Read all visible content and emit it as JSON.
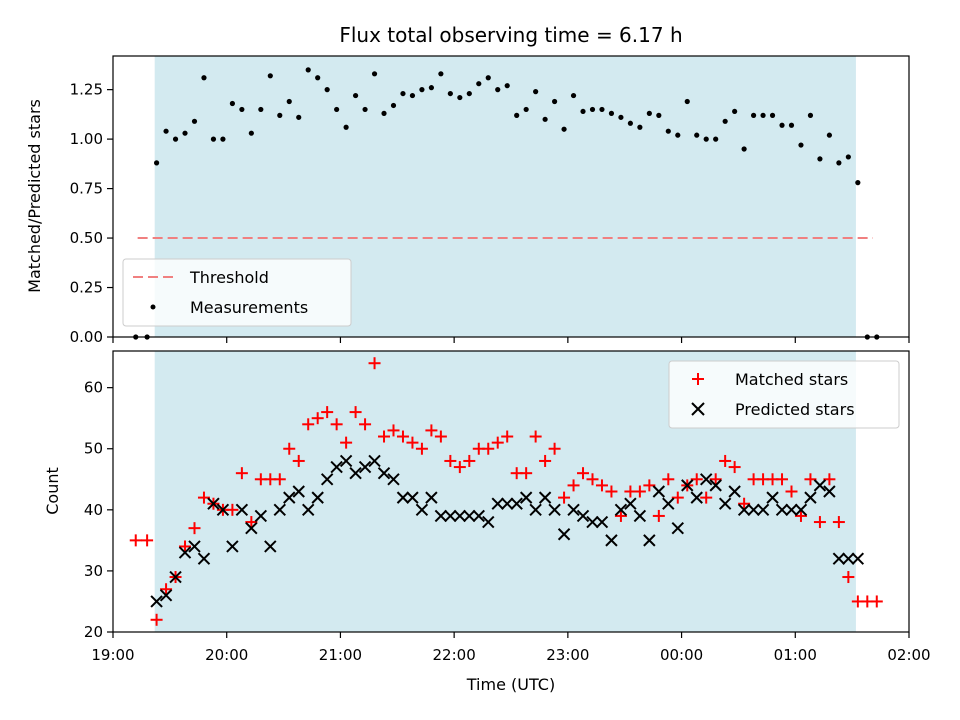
{
  "chart_data": [
    {
      "type": "scatter",
      "title": "Flux total observing time = 6.17 h",
      "xlabel": "",
      "ylabel": "Matched/Predicted stars",
      "ylim": [
        0,
        1.42
      ],
      "xlim": [
        "19:00",
        "02:00"
      ],
      "yticks": [
        "0.00",
        "0.25",
        "0.50",
        "0.75",
        "1.00",
        "1.25"
      ],
      "observing_window": [
        "19:22",
        "01:32"
      ],
      "window_color": "#d3eaf0",
      "legend": [
        "Threshold",
        "Measurements"
      ],
      "legend_placement": "lower-left",
      "threshold": {
        "name": "Threshold",
        "value": 0.5,
        "x_range": [
          "19:13",
          "01:41"
        ],
        "color": "#f08080",
        "style": "dashed"
      },
      "series": [
        {
          "name": "Measurements",
          "marker": "dot",
          "color": "#000000",
          "x": [
            "19:12",
            "19:18",
            "19:23",
            "19:28",
            "19:33",
            "19:38",
            "19:43",
            "19:48",
            "19:53",
            "19:58",
            "20:03",
            "20:08",
            "20:13",
            "20:18",
            "20:23",
            "20:28",
            "20:33",
            "20:38",
            "20:43",
            "20:48",
            "20:53",
            "20:58",
            "21:03",
            "21:08",
            "21:13",
            "21:18",
            "21:23",
            "21:28",
            "21:33",
            "21:38",
            "21:43",
            "21:48",
            "21:53",
            "21:58",
            "22:03",
            "22:08",
            "22:13",
            "22:18",
            "22:23",
            "22:28",
            "22:33",
            "22:38",
            "22:43",
            "22:48",
            "22:53",
            "22:58",
            "23:03",
            "23:08",
            "23:13",
            "23:18",
            "23:23",
            "23:28",
            "23:33",
            "23:38",
            "23:43",
            "23:48",
            "23:53",
            "23:58",
            "00:03",
            "00:08",
            "00:13",
            "00:18",
            "00:23",
            "00:28",
            "00:33",
            "00:38",
            "00:43",
            "00:48",
            "00:53",
            "00:58",
            "01:03",
            "01:08",
            "01:13",
            "01:18",
            "01:23",
            "01:28",
            "01:33",
            "01:38",
            "01:43"
          ],
          "values": [
            0.0,
            0.0,
            0.88,
            1.04,
            1.0,
            1.03,
            1.09,
            1.31,
            1.0,
            1.0,
            1.18,
            1.15,
            1.03,
            1.15,
            1.32,
            1.12,
            1.19,
            1.11,
            1.35,
            1.31,
            1.25,
            1.15,
            1.06,
            1.22,
            1.15,
            1.33,
            1.13,
            1.17,
            1.23,
            1.22,
            1.25,
            1.26,
            1.33,
            1.23,
            1.21,
            1.23,
            1.28,
            1.31,
            1.25,
            1.27,
            1.12,
            1.15,
            1.24,
            1.1,
            1.19,
            1.05,
            1.22,
            1.14,
            1.15,
            1.15,
            1.13,
            1.11,
            1.08,
            1.06,
            1.13,
            1.12,
            1.04,
            1.02,
            1.19,
            1.02,
            1.0,
            1.0,
            1.09,
            1.14,
            0.95,
            1.12,
            1.12,
            1.12,
            1.07,
            1.07,
            0.97,
            1.12,
            0.9,
            1.02,
            0.88,
            0.91,
            0.78,
            0.0,
            0.0
          ]
        }
      ]
    },
    {
      "type": "scatter",
      "title": "",
      "xlabel": "Time (UTC)",
      "ylabel": "Count",
      "ylim": [
        20,
        66
      ],
      "xlim": [
        "19:00",
        "02:00"
      ],
      "yticks": [
        "20",
        "30",
        "40",
        "50",
        "60"
      ],
      "xticks": [
        "19:00",
        "20:00",
        "21:00",
        "22:00",
        "23:00",
        "00:00",
        "01:00",
        "02:00"
      ],
      "observing_window": [
        "19:22",
        "01:32"
      ],
      "window_color": "#d3eaf0",
      "legend": [
        "Matched stars",
        "Predicted stars"
      ],
      "legend_placement": "top-right",
      "series": [
        {
          "name": "Matched stars",
          "marker": "plus",
          "color": "#ff0000",
          "x": [
            "19:12",
            "19:18",
            "19:23",
            "19:28",
            "19:33",
            "19:38",
            "19:43",
            "19:48",
            "19:53",
            "19:58",
            "20:03",
            "20:08",
            "20:13",
            "20:18",
            "20:23",
            "20:28",
            "20:33",
            "20:38",
            "20:43",
            "20:48",
            "20:53",
            "20:58",
            "21:03",
            "21:08",
            "21:13",
            "21:18",
            "21:23",
            "21:28",
            "21:33",
            "21:38",
            "21:43",
            "21:48",
            "21:53",
            "21:58",
            "22:03",
            "22:08",
            "22:13",
            "22:18",
            "22:23",
            "22:28",
            "22:33",
            "22:38",
            "22:43",
            "22:48",
            "22:53",
            "22:58",
            "23:03",
            "23:08",
            "23:13",
            "23:18",
            "23:23",
            "23:28",
            "23:33",
            "23:38",
            "23:43",
            "23:48",
            "23:53",
            "23:58",
            "00:03",
            "00:08",
            "00:13",
            "00:18",
            "00:23",
            "00:28",
            "00:33",
            "00:38",
            "00:43",
            "00:48",
            "00:53",
            "00:58",
            "01:03",
            "01:08",
            "01:13",
            "01:18",
            "01:23",
            "01:28",
            "01:33",
            "01:38",
            "01:43"
          ],
          "values": [
            35,
            35,
            22,
            27,
            29,
            34,
            37,
            42,
            41,
            40,
            40,
            46,
            38,
            45,
            45,
            45,
            50,
            48,
            54,
            55,
            56,
            54,
            51,
            56,
            54,
            64,
            52,
            53,
            52,
            51,
            50,
            53,
            52,
            48,
            47,
            48,
            50,
            50,
            51,
            52,
            46,
            46,
            52,
            48,
            50,
            42,
            44,
            46,
            45,
            44,
            43,
            39,
            43,
            43,
            44,
            39,
            45,
            42,
            44,
            45,
            42,
            45,
            48,
            47,
            41,
            45,
            45,
            45,
            45,
            43,
            39,
            45,
            38,
            45,
            38,
            29,
            25,
            25,
            25
          ]
        },
        {
          "name": "Predicted stars",
          "marker": "x",
          "color": "#000000",
          "x": [
            "19:23",
            "19:28",
            "19:33",
            "19:38",
            "19:43",
            "19:48",
            "19:53",
            "19:58",
            "20:03",
            "20:08",
            "20:13",
            "20:18",
            "20:23",
            "20:28",
            "20:33",
            "20:38",
            "20:43",
            "20:48",
            "20:53",
            "20:58",
            "21:03",
            "21:08",
            "21:13",
            "21:18",
            "21:23",
            "21:28",
            "21:33",
            "21:38",
            "21:43",
            "21:48",
            "21:53",
            "21:58",
            "22:03",
            "22:08",
            "22:13",
            "22:18",
            "22:23",
            "22:28",
            "22:33",
            "22:38",
            "22:43",
            "22:48",
            "22:53",
            "22:58",
            "23:03",
            "23:08",
            "23:13",
            "23:18",
            "23:23",
            "23:28",
            "23:33",
            "23:38",
            "23:43",
            "23:48",
            "23:53",
            "23:58",
            "00:03",
            "00:08",
            "00:13",
            "00:18",
            "00:23",
            "00:28",
            "00:33",
            "00:38",
            "00:43",
            "00:48",
            "00:53",
            "00:58",
            "01:03",
            "01:08",
            "01:13",
            "01:18",
            "01:23",
            "01:28",
            "01:33"
          ],
          "values": [
            25,
            26,
            29,
            33,
            34,
            32,
            41,
            40,
            34,
            40,
            37,
            39,
            34,
            40,
            42,
            43,
            40,
            42,
            45,
            47,
            48,
            46,
            47,
            48,
            46,
            45,
            42,
            42,
            40,
            42,
            39,
            39,
            39,
            39,
            39,
            38,
            41,
            41,
            41,
            42,
            40,
            42,
            40,
            36,
            40,
            39,
            38,
            38,
            35,
            40,
            41,
            39,
            35,
            43,
            41,
            37,
            44,
            42,
            45,
            44,
            41,
            43,
            40,
            40,
            40,
            42,
            40,
            40,
            40,
            42,
            44,
            43,
            32,
            32,
            32
          ]
        }
      ]
    }
  ]
}
